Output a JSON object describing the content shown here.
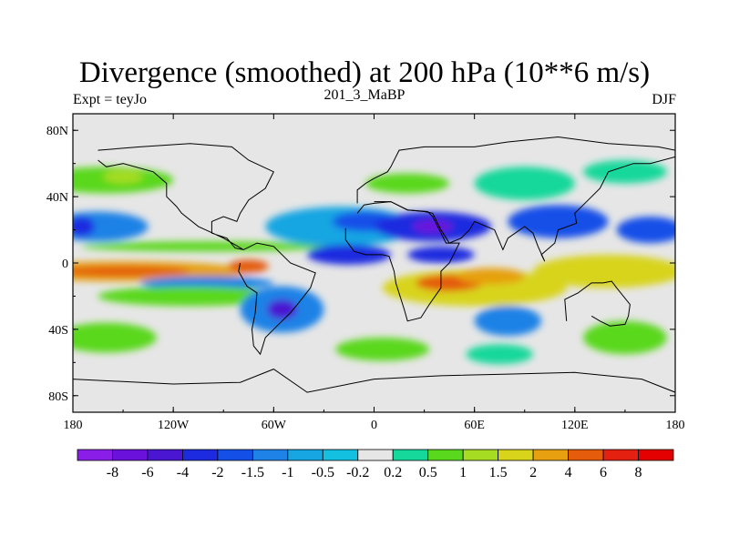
{
  "chart_data": {
    "type": "heatmap",
    "title": "Divergence (smoothed) at 200 hPa (10**6 m/s)",
    "subtitle_left": "Expt = teyJo",
    "subtitle_center": "201_3_MaBP",
    "subtitle_right": "DJF",
    "x_axis": {
      "ticks": [
        "180",
        "120W",
        "60W",
        "0",
        "60E",
        "120E",
        "180"
      ],
      "range": [
        -180,
        180
      ]
    },
    "y_axis": {
      "ticks": [
        "80N",
        "40N",
        "0",
        "40S",
        "80S"
      ],
      "range": [
        -90,
        90
      ]
    },
    "colorbar": {
      "labels": [
        "-8",
        "-6",
        "-4",
        "-2",
        "-1.5",
        "-1",
        "-0.5",
        "-0.2",
        "0.2",
        "0.5",
        "1",
        "1.5",
        "2",
        "4",
        "6",
        "8"
      ],
      "colors": [
        "#8a1ee8",
        "#6a12dc",
        "#4a16d2",
        "#1c2ae0",
        "#1450e8",
        "#1e82e6",
        "#18a6e2",
        "#14c0e0",
        "#e6e6e6",
        "#16d89a",
        "#5ad81e",
        "#a6dc22",
        "#d8d41c",
        "#e6a010",
        "#e45c0c",
        "#e42010",
        "#e40000"
      ]
    },
    "features": [
      {
        "lon": -160,
        "lat": 50,
        "rx": 40,
        "ry": 8,
        "level": 10
      },
      {
        "lon": -150,
        "lat": 52,
        "rx": 12,
        "ry": 4,
        "level": 11
      },
      {
        "lon": -165,
        "lat": 22,
        "rx": 30,
        "ry": 9,
        "level": 5
      },
      {
        "lon": -175,
        "lat": 22,
        "rx": 8,
        "ry": 6,
        "level": 3
      },
      {
        "lon": -100,
        "lat": 10,
        "rx": 75,
        "ry": 3,
        "level": 10
      },
      {
        "lon": -150,
        "lat": -5,
        "rx": 75,
        "ry": 6,
        "level": 13
      },
      {
        "lon": -150,
        "lat": -5,
        "rx": 40,
        "ry": 3,
        "level": 14
      },
      {
        "lon": -75,
        "lat": -2,
        "rx": 12,
        "ry": 4,
        "level": 14
      },
      {
        "lon": -100,
        "lat": -12,
        "rx": 40,
        "ry": 4,
        "level": 5
      },
      {
        "lon": -110,
        "lat": -20,
        "rx": 55,
        "ry": 6,
        "level": 10
      },
      {
        "lon": -160,
        "lat": -45,
        "rx": 30,
        "ry": 9,
        "level": 10
      },
      {
        "lon": -55,
        "lat": -28,
        "rx": 25,
        "ry": 14,
        "level": 5
      },
      {
        "lon": -55,
        "lat": -28,
        "rx": 9,
        "ry": 6,
        "level": 2
      },
      {
        "lon": -20,
        "lat": 22,
        "rx": 45,
        "ry": 12,
        "level": 6
      },
      {
        "lon": -5,
        "lat": 25,
        "rx": 20,
        "ry": 6,
        "level": 4
      },
      {
        "lon": -15,
        "lat": 5,
        "rx": 25,
        "ry": 6,
        "level": 3
      },
      {
        "lon": 35,
        "lat": 22,
        "rx": 35,
        "ry": 9,
        "level": 3
      },
      {
        "lon": 35,
        "lat": 22,
        "rx": 12,
        "ry": 4,
        "level": 1
      },
      {
        "lon": 40,
        "lat": 5,
        "rx": 20,
        "ry": 5,
        "level": 3
      },
      {
        "lon": 60,
        "lat": -15,
        "rx": 55,
        "ry": 11,
        "level": 12
      },
      {
        "lon": 45,
        "lat": -12,
        "rx": 20,
        "ry": 5,
        "level": 14
      },
      {
        "lon": 70,
        "lat": -8,
        "rx": 20,
        "ry": 5,
        "level": 13
      },
      {
        "lon": 140,
        "lat": -5,
        "rx": 45,
        "ry": 10,
        "level": 12
      },
      {
        "lon": 110,
        "lat": 25,
        "rx": 30,
        "ry": 10,
        "level": 4
      },
      {
        "lon": 165,
        "lat": 20,
        "rx": 20,
        "ry": 8,
        "level": 4
      },
      {
        "lon": 90,
        "lat": 48,
        "rx": 30,
        "ry": 10,
        "level": 9
      },
      {
        "lon": 20,
        "lat": 48,
        "rx": 25,
        "ry": 6,
        "level": 10
      },
      {
        "lon": 150,
        "lat": 55,
        "rx": 25,
        "ry": 7,
        "level": 9
      },
      {
        "lon": 80,
        "lat": -35,
        "rx": 20,
        "ry": 9,
        "level": 5
      },
      {
        "lon": 150,
        "lat": -45,
        "rx": 25,
        "ry": 10,
        "level": 10
      },
      {
        "lon": 5,
        "lat": -52,
        "rx": 28,
        "ry": 7,
        "level": 10
      },
      {
        "lon": 75,
        "lat": -55,
        "rx": 20,
        "ry": 6,
        "level": 9
      }
    ]
  }
}
